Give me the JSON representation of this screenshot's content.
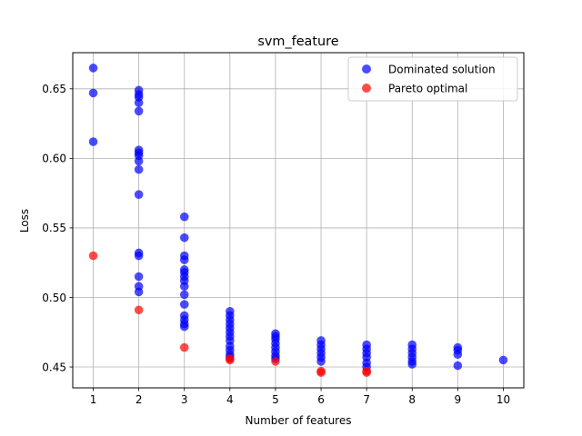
{
  "chart_data": {
    "type": "scatter",
    "title": "svm_feature",
    "xlabel": "Number of features",
    "ylabel": "Loss",
    "xlim": [
      0.55,
      10.45
    ],
    "ylim": [
      0.435,
      0.676
    ],
    "xticks": [
      1,
      2,
      3,
      4,
      5,
      6,
      7,
      8,
      9,
      10
    ],
    "yticks": [
      0.45,
      0.5,
      0.55,
      0.6,
      0.65
    ],
    "ytick_labels": [
      "0.45",
      "0.50",
      "0.55",
      "0.60",
      "0.65"
    ],
    "grid": true,
    "legend_position": "top-right",
    "series": [
      {
        "name": "Dominated solution",
        "color": "#0000ff",
        "points": [
          [
            1,
            0.665
          ],
          [
            1,
            0.647
          ],
          [
            1,
            0.612
          ],
          [
            2,
            0.649
          ],
          [
            2,
            0.646
          ],
          [
            2,
            0.644
          ],
          [
            2,
            0.64
          ],
          [
            2,
            0.634
          ],
          [
            2,
            0.606
          ],
          [
            2,
            0.604
          ],
          [
            2,
            0.602
          ],
          [
            2,
            0.598
          ],
          [
            2,
            0.592
          ],
          [
            2,
            0.574
          ],
          [
            2,
            0.532
          ],
          [
            2,
            0.53
          ],
          [
            2,
            0.515
          ],
          [
            2,
            0.508
          ],
          [
            2,
            0.504
          ],
          [
            3,
            0.558
          ],
          [
            3,
            0.543
          ],
          [
            3,
            0.53
          ],
          [
            3,
            0.527
          ],
          [
            3,
            0.52
          ],
          [
            3,
            0.518
          ],
          [
            3,
            0.515
          ],
          [
            3,
            0.512
          ],
          [
            3,
            0.508
          ],
          [
            3,
            0.502
          ],
          [
            3,
            0.495
          ],
          [
            3,
            0.487
          ],
          [
            3,
            0.484
          ],
          [
            3,
            0.481
          ],
          [
            3,
            0.479
          ],
          [
            4,
            0.49
          ],
          [
            4,
            0.487
          ],
          [
            4,
            0.484
          ],
          [
            4,
            0.481
          ],
          [
            4,
            0.478
          ],
          [
            4,
            0.475
          ],
          [
            4,
            0.472
          ],
          [
            4,
            0.469
          ],
          [
            4,
            0.465
          ],
          [
            4,
            0.462
          ],
          [
            4,
            0.459
          ],
          [
            4,
            0.457
          ],
          [
            5,
            0.474
          ],
          [
            5,
            0.472
          ],
          [
            5,
            0.47
          ],
          [
            5,
            0.467
          ],
          [
            5,
            0.464
          ],
          [
            5,
            0.461
          ],
          [
            5,
            0.458
          ],
          [
            5,
            0.456
          ],
          [
            6,
            0.469
          ],
          [
            6,
            0.466
          ],
          [
            6,
            0.463
          ],
          [
            6,
            0.46
          ],
          [
            6,
            0.457
          ],
          [
            6,
            0.454
          ],
          [
            7,
            0.466
          ],
          [
            7,
            0.463
          ],
          [
            7,
            0.46
          ],
          [
            7,
            0.457
          ],
          [
            7,
            0.453
          ],
          [
            7,
            0.45
          ],
          [
            8,
            0.466
          ],
          [
            8,
            0.463
          ],
          [
            8,
            0.46
          ],
          [
            8,
            0.457
          ],
          [
            8,
            0.454
          ],
          [
            8,
            0.452
          ],
          [
            9,
            0.464
          ],
          [
            9,
            0.462
          ],
          [
            9,
            0.459
          ],
          [
            9,
            0.451
          ],
          [
            10,
            0.455
          ]
        ]
      },
      {
        "name": "Pareto optimal",
        "color": "#ff0000",
        "points": [
          [
            1,
            0.53
          ],
          [
            2,
            0.491
          ],
          [
            3,
            0.464
          ],
          [
            4,
            0.456
          ],
          [
            4,
            0.455
          ],
          [
            5,
            0.454
          ],
          [
            6,
            0.447
          ],
          [
            6,
            0.446
          ],
          [
            7,
            0.447
          ],
          [
            7,
            0.446
          ]
        ]
      }
    ]
  }
}
